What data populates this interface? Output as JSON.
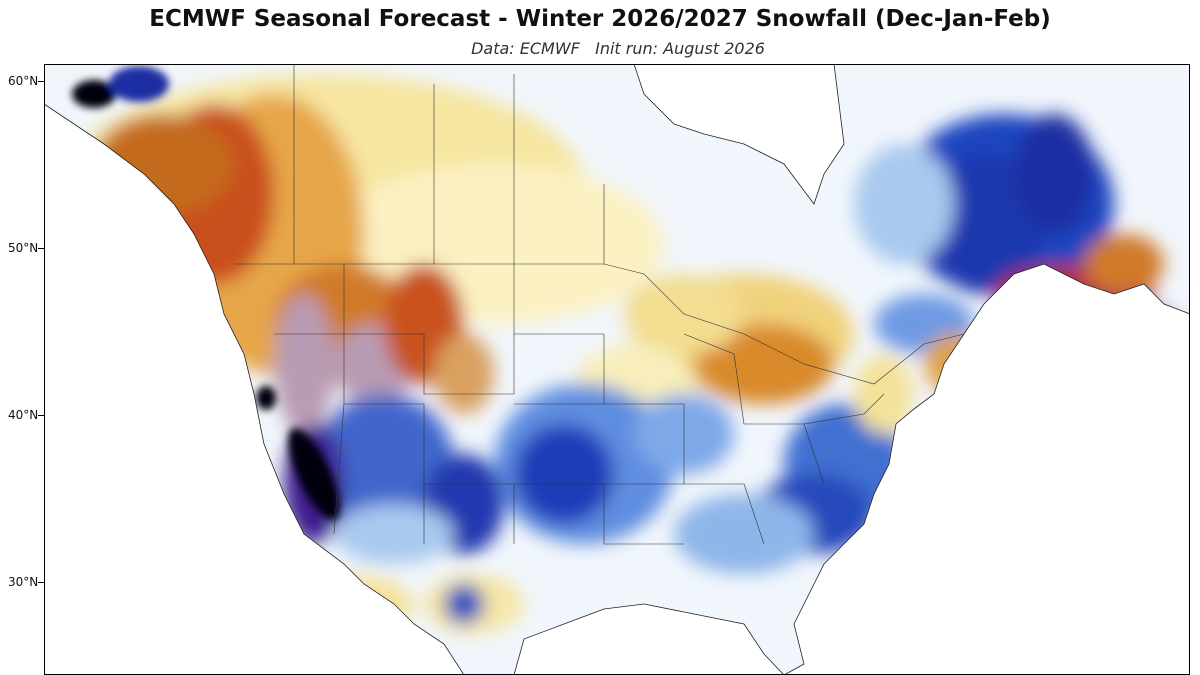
{
  "title": "ECMWF Seasonal Forecast - Winter 2026/2027 Snowfall (Dec-Jan-Feb)",
  "subtitle": "Data: ECMWF   Init run: August 2026",
  "axis": {
    "lat_ticks": [
      "60°N",
      "50°N",
      "40°N",
      "30°N"
    ]
  },
  "colors": {
    "strong_deficit": "#b0334a",
    "deficit_mauve": "#b89bb4",
    "deficit_red": "#c24a1a",
    "deficit_orange": "#d98a2a",
    "deficit_yellow": "#f4e29a",
    "deficit_pale": "#fbf3c4",
    "neutral": "#f4f8fc",
    "surplus_light": "#a9c9ee",
    "surplus_mid": "#4f7fdc",
    "surplus_strong": "#1c3cb8",
    "surplus_extreme": "#3c1a8e",
    "surplus_max": "#050510"
  }
}
